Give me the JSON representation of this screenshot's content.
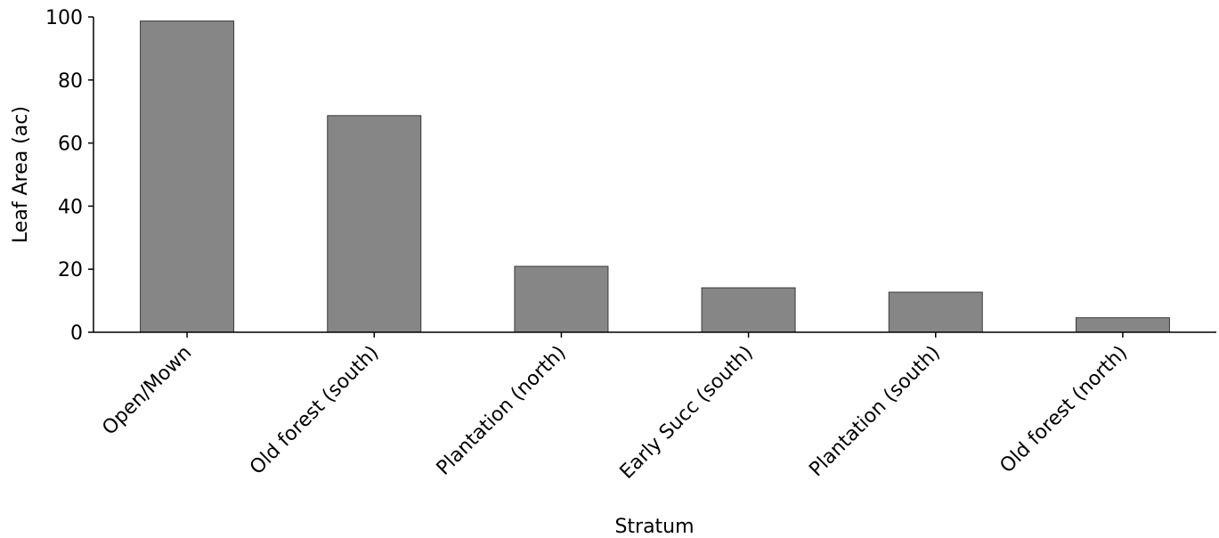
{
  "chart_data": {
    "type": "bar",
    "categories": [
      "Open/Mown",
      "Old forest (south)",
      "Plantation (north)",
      "Early Succ (south)",
      "Plantation (south)",
      "Old forest (north)"
    ],
    "values": [
      98.7,
      68.7,
      20.9,
      14.1,
      12.7,
      4.6
    ],
    "xlabel": "Stratum",
    "ylabel": "Leaf Area (ac)",
    "ylim": [
      0,
      100
    ],
    "yticks": [
      "0",
      "20",
      "40",
      "60",
      "80",
      "100"
    ],
    "grid": false,
    "legend": "none",
    "colors": {
      "bar_fill": "#868686",
      "bar_stroke": "#3a3a3a",
      "axis": "#000000"
    }
  }
}
